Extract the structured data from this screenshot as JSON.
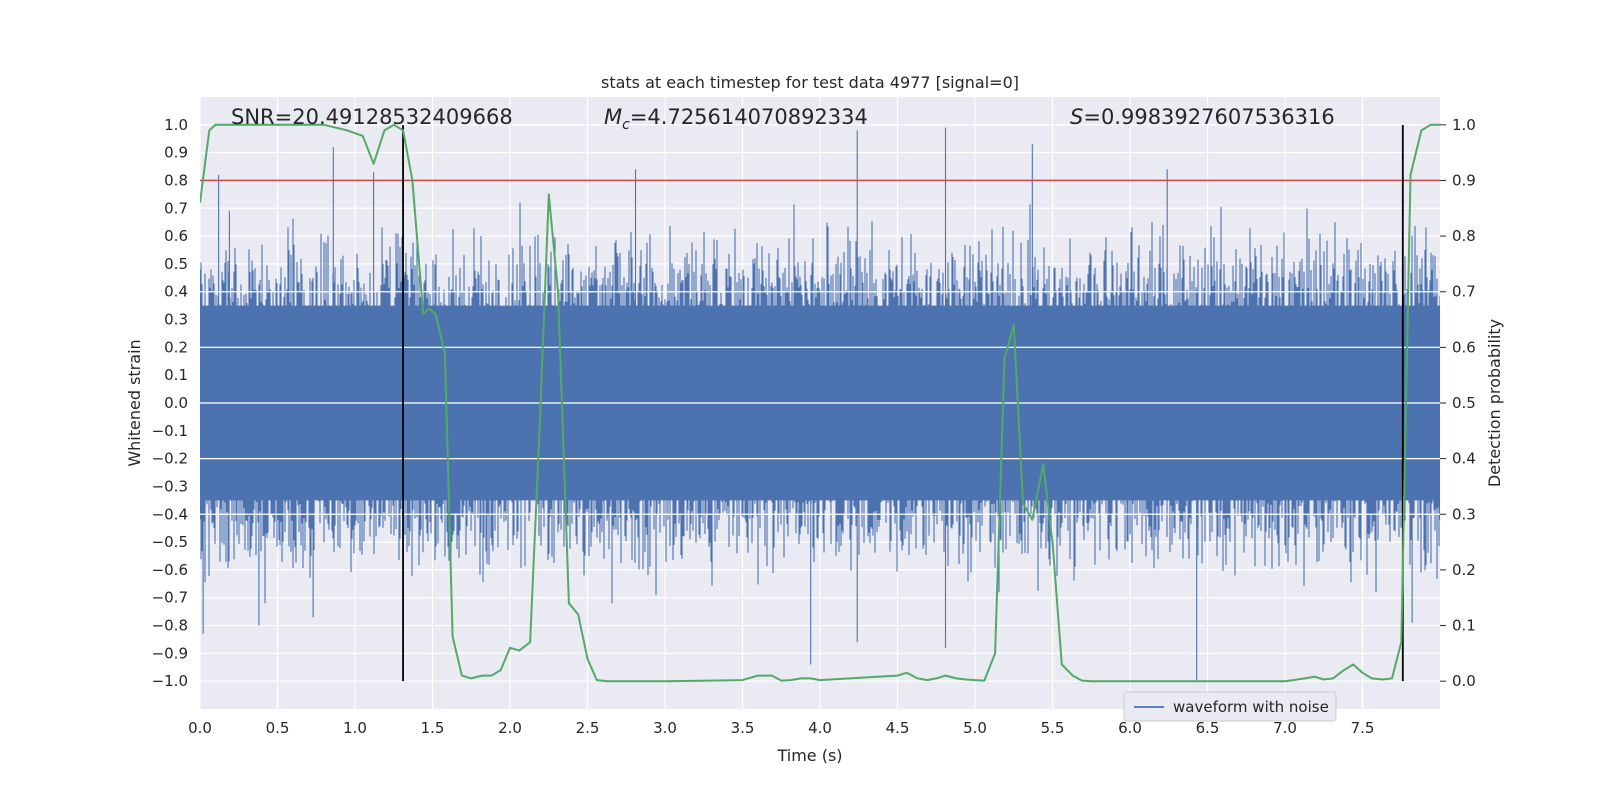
{
  "chart_data": {
    "type": "line",
    "title": "stats at each timestep for test data 4977 [signal=0]",
    "xlabel": "Time (s)",
    "ylabel": "Whitened strain",
    "y2label": "Detection probability",
    "xlim": [
      0.0,
      8.0
    ],
    "ylim": [
      -1.1,
      1.1
    ],
    "y2lim": [
      -0.05,
      1.05
    ],
    "x_ticks": [
      "0.0",
      "0.5",
      "1.0",
      "1.5",
      "2.0",
      "2.5",
      "3.0",
      "3.5",
      "4.0",
      "4.5",
      "5.0",
      "5.5",
      "6.0",
      "6.5",
      "7.0",
      "7.5"
    ],
    "y_ticks": [
      "−1.0",
      "−0.9",
      "−0.8",
      "−0.7",
      "−0.6",
      "−0.5",
      "−0.4",
      "−0.3",
      "−0.2",
      "−0.1",
      "0.0",
      "0.1",
      "0.2",
      "0.3",
      "0.4",
      "0.5",
      "0.6",
      "0.7",
      "0.8",
      "0.9",
      "1.0"
    ],
    "y2_ticks": [
      "0.0",
      "0.1",
      "0.2",
      "0.3",
      "0.4",
      "0.5",
      "0.6",
      "0.7",
      "0.8",
      "0.9",
      "1.0"
    ],
    "grid": true,
    "legend": {
      "position": "bottom-right",
      "entries": [
        "waveform with noise"
      ]
    },
    "annotations": {
      "snr": "SNR=20.49128532409668",
      "mc_symbol": "M",
      "mc_sub": "c",
      "mc_value": "=4.725614070892334",
      "s_symbol": "S",
      "s_value": "=0.9983927607536316"
    },
    "threshold_line": {
      "axis": "y2",
      "value": 0.9
    },
    "vertical_lines": [
      1.31,
      7.76
    ],
    "waveform": {
      "name": "waveform with noise",
      "note": "dense noisy strain; envelope mostly within ±0.6 with spikes near ±1.0",
      "spikes": [
        {
          "x": 0.12,
          "y": 0.82
        },
        {
          "x": 0.19,
          "y": 0.69
        },
        {
          "x": 0.86,
          "y": 0.92
        },
        {
          "x": 1.12,
          "y": 0.83
        },
        {
          "x": 2.81,
          "y": 0.84
        },
        {
          "x": 4.24,
          "y": 0.98
        },
        {
          "x": 4.81,
          "y": 0.99
        },
        {
          "x": 5.37,
          "y": 0.93
        },
        {
          "x": 6.24,
          "y": 0.84
        },
        {
          "x": 0.02,
          "y": -0.83
        },
        {
          "x": 0.38,
          "y": -0.8
        },
        {
          "x": 0.73,
          "y": -0.77
        },
        {
          "x": 3.94,
          "y": -0.94
        },
        {
          "x": 4.24,
          "y": -0.86
        },
        {
          "x": 4.81,
          "y": -0.88
        },
        {
          "x": 6.43,
          "y": -1.0
        },
        {
          "x": 7.82,
          "y": -0.79
        }
      ]
    },
    "probability": {
      "name": "detection probability",
      "x": [
        0.0,
        0.06,
        0.1,
        0.2,
        0.4,
        0.6,
        0.8,
        0.95,
        1.05,
        1.12,
        1.19,
        1.25,
        1.31,
        1.37,
        1.44,
        1.48,
        1.52,
        1.58,
        1.63,
        1.69,
        1.75,
        1.82,
        1.88,
        1.94,
        2.0,
        2.06,
        2.13,
        2.19,
        2.25,
        2.31,
        2.38,
        2.44,
        2.5,
        2.56,
        2.63,
        3.0,
        3.5,
        3.6,
        3.69,
        3.75,
        3.81,
        3.88,
        3.94,
        4.0,
        4.5,
        4.56,
        4.63,
        4.69,
        4.75,
        4.81,
        4.88,
        4.94,
        5.0,
        5.06,
        5.13,
        5.19,
        5.25,
        5.31,
        5.37,
        5.44,
        5.5,
        5.56,
        5.63,
        5.69,
        5.75,
        5.81,
        6.0,
        6.5,
        7.0,
        7.13,
        7.19,
        7.25,
        7.31,
        7.38,
        7.44,
        7.5,
        7.56,
        7.63,
        7.69,
        7.75,
        7.81,
        7.88,
        7.94,
        8.0
      ],
      "y": [
        0.86,
        0.99,
        1.0,
        1.0,
        1.0,
        1.0,
        1.0,
        0.99,
        0.98,
        0.93,
        0.99,
        1.0,
        0.99,
        0.9,
        0.66,
        0.67,
        0.66,
        0.59,
        0.08,
        0.01,
        0.005,
        0.01,
        0.01,
        0.02,
        0.06,
        0.055,
        0.07,
        0.45,
        0.875,
        0.7,
        0.14,
        0.12,
        0.04,
        0.002,
        0.0,
        0.0,
        0.002,
        0.01,
        0.01,
        0.001,
        0.002,
        0.005,
        0.005,
        0.002,
        0.01,
        0.015,
        0.005,
        0.002,
        0.005,
        0.01,
        0.005,
        0.003,
        0.002,
        0.001,
        0.05,
        0.58,
        0.64,
        0.32,
        0.29,
        0.39,
        0.25,
        0.03,
        0.01,
        0.001,
        0.0,
        0.0,
        0.0,
        0.0,
        0.0,
        0.005,
        0.008,
        0.003,
        0.005,
        0.02,
        0.03,
        0.015,
        0.005,
        0.003,
        0.005,
        0.07,
        0.91,
        0.99,
        1.0,
        1.0
      ]
    },
    "colors": {
      "background": "#eaeaf2",
      "grid": "#ffffff",
      "waveform": "#4c72b0",
      "probability": "#55a868",
      "threshold": "#c44e52",
      "markers": "#000000"
    }
  }
}
